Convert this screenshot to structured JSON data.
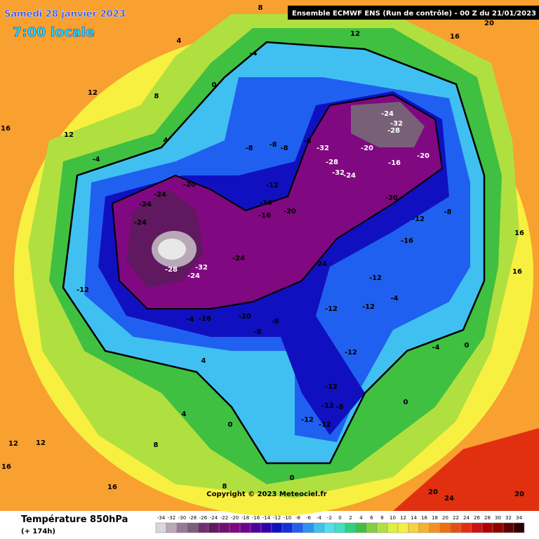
{
  "header": {
    "date": "Samedi 28 janvier 2023",
    "time": "7:00 locale",
    "model": "Ensemble ECMWF ENS  (Run de contrôle)  -  00 Z du 21/01/2023"
  },
  "copyright": "Copyright © 2023 Meteociel.fr",
  "footer": {
    "title": "Température 850hPa",
    "lead": "(+ 174h)"
  },
  "legend": {
    "values": [
      -34,
      -32,
      -30,
      -28,
      -26,
      -24,
      -22,
      -20,
      -18,
      -16,
      -14,
      -12,
      -10,
      -8,
      -6,
      -4,
      -2,
      0,
      2,
      4,
      6,
      8,
      10,
      12,
      14,
      16,
      18,
      20,
      22,
      24,
      26,
      28,
      30,
      32,
      34
    ],
    "colors": [
      "#d8d8d8",
      "#b8a8b8",
      "#987898",
      "#786078",
      "#703070",
      "#601860",
      "#701070",
      "#800880",
      "#700090",
      "#5000a0",
      "#3000b0",
      "#1010c0",
      "#1030e0",
      "#2060f0",
      "#3090f0",
      "#40c0f0",
      "#50e0f0",
      "#40e0c0",
      "#30d080",
      "#40c040",
      "#80d040",
      "#b0e040",
      "#e0f040",
      "#f8f040",
      "#f8d040",
      "#f8b030",
      "#f89020",
      "#f07010",
      "#e85010",
      "#e03010",
      "#d01010",
      "#b00000",
      "#900000",
      "#600000",
      "#300000"
    ]
  },
  "map": {
    "contour_labels": [
      "-24",
      "-24",
      "-24",
      "-20",
      "-28",
      "-32",
      "-24",
      "-24",
      "-20",
      "-16",
      "-4",
      "-8",
      "-8",
      "-12",
      "-24",
      "-20",
      "-16",
      "-16",
      "-12",
      "-8",
      "-8",
      "-8",
      "-8",
      "-32",
      "-28",
      "-32",
      "-24",
      "-20",
      "-24",
      "-32",
      "-28",
      "-20",
      "-16",
      "-20",
      "-12",
      "-16",
      "-8",
      "-12",
      "-12",
      "-4",
      "-12",
      "-12",
      "-12",
      "-8",
      "-12",
      "-12",
      "0",
      "4",
      "4",
      "8",
      "12",
      "16",
      "12",
      "16",
      "20",
      "16",
      "16",
      "20",
      "24",
      "20",
      "16",
      "16",
      "12",
      "12",
      "-4",
      "4",
      "0",
      "-4",
      "8",
      "4",
      "12",
      "8",
      "0",
      "-4",
      "0",
      "0",
      "8",
      "-12"
    ]
  }
}
